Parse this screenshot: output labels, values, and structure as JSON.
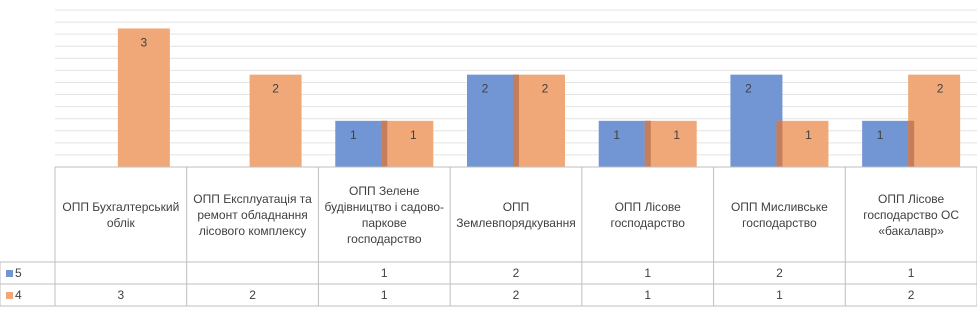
{
  "chart_data": {
    "type": "bar",
    "categories": [
      "ОПП Бухгалтерський облік",
      "ОПП Експлуатація та ремонт обладнання лісового комплексу",
      "ОПП Зелене будівництво і садово-паркове господарство",
      "ОПП Землевпорядкування",
      "ОПП Лісове господарство",
      "ОПП Мисливське господарство",
      "ОПП Лісове господарство ОС «бакалавр»"
    ],
    "category_lines": [
      [
        "ОПП Бухгалтерський",
        "облік"
      ],
      [
        "ОПП Експлуатація та",
        "ремонт обладнання",
        "лісового комплексу"
      ],
      [
        "ОПП Зелене",
        "будівництво і садово-",
        "паркове",
        "господарство"
      ],
      [
        "ОПП",
        "Землевпорядкування"
      ],
      [
        "ОПП Лісове",
        "господарство"
      ],
      [
        "ОПП Мисливське",
        "господарство"
      ],
      [
        "ОПП Лісове",
        "господарство ОС",
        "«бакалавр»"
      ]
    ],
    "series": [
      {
        "name": "5",
        "color": "#7295D3",
        "values": [
          null,
          null,
          1,
          2,
          1,
          2,
          1
        ]
      },
      {
        "name": "4",
        "color": "#F0A878",
        "values": [
          3,
          2,
          1,
          2,
          1,
          1,
          2
        ]
      }
    ],
    "ylim": [
      0,
      3.4
    ],
    "grid": true,
    "legend": "data-table"
  }
}
